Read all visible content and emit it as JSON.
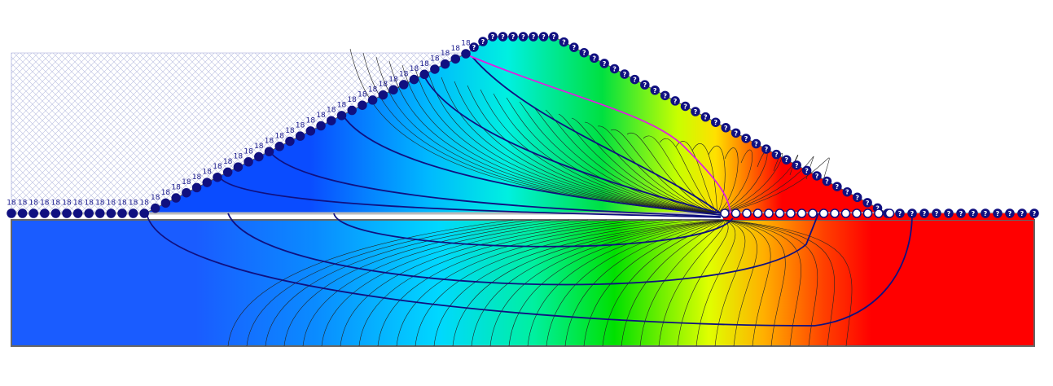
{
  "boundary_labels": {
    "upstream_head": "18",
    "downstream_unknown": "?"
  }
}
